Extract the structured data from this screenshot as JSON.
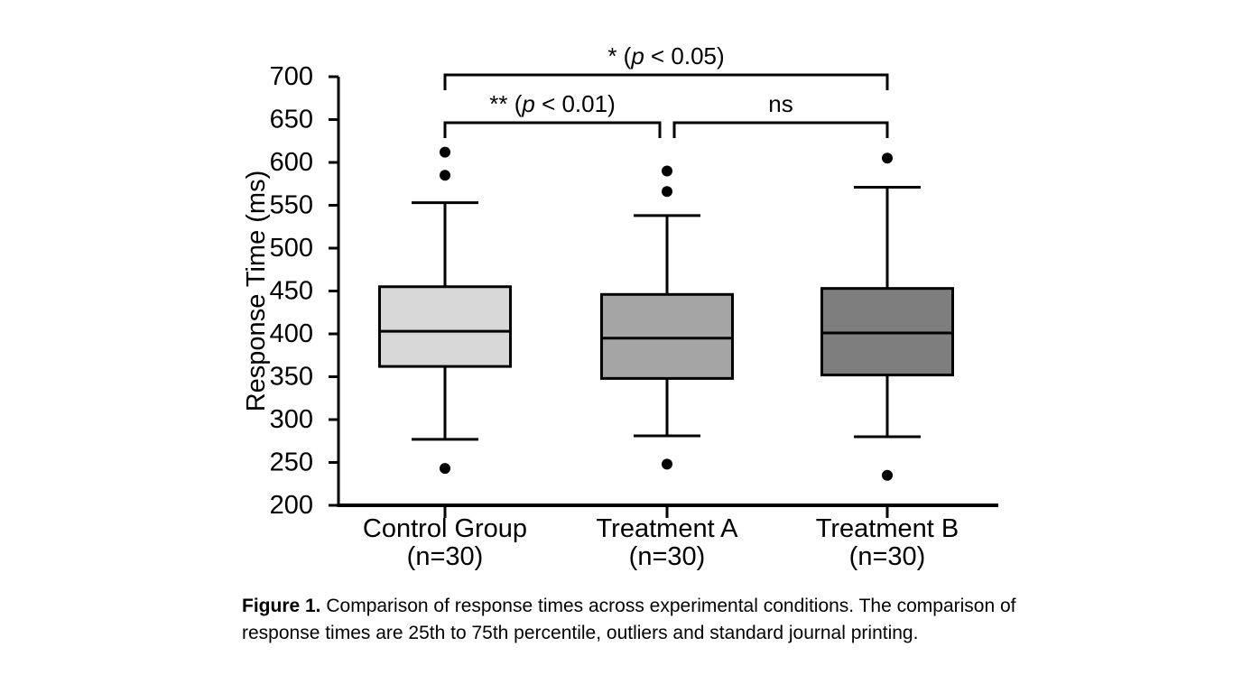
{
  "figure": {
    "background": "#ffffff",
    "caption": {
      "bold": "Figure 1.",
      "text": " Comparison of response times across experimental conditions. The comparison of response times are 25th to 75th percentile, outliers and standard journal printing."
    }
  },
  "chart_data": {
    "type": "box",
    "title": "",
    "xlabel": "",
    "ylabel": "Response Time (ms)",
    "ylim": [
      200,
      700
    ],
    "y_ticks": [
      200,
      250,
      300,
      350,
      400,
      450,
      500,
      550,
      600,
      650,
      700
    ],
    "grid": false,
    "categories": [
      "Control Group",
      "Treatment A",
      "Treatment B"
    ],
    "groups": [
      {
        "label": "Control Group",
        "sublabel": "(n=30)",
        "fill": "#d8d8d8",
        "whisker_low": 277,
        "q1": 362,
        "median": 403,
        "q3": 455,
        "whisker_high": 553,
        "outliers": [
          243,
          585,
          612
        ]
      },
      {
        "label": "Treatment A",
        "sublabel": "(n=30)",
        "fill": "#a5a5a5",
        "whisker_low": 281,
        "q1": 348,
        "median": 395,
        "q3": 446,
        "whisker_high": 538,
        "outliers": [
          248,
          566,
          590
        ]
      },
      {
        "label": "Treatment B",
        "sublabel": "(n=30)",
        "fill": "#7e7e7e",
        "whisker_low": 280,
        "q1": 352,
        "median": 401,
        "q3": 453,
        "whisker_high": 571,
        "outliers": [
          235,
          605
        ]
      }
    ],
    "significance": [
      {
        "between": [
          0,
          2
        ],
        "row": "top",
        "label_pre": "* (",
        "label_italic": "p",
        "label_post": " < 0.05)"
      },
      {
        "between": [
          0,
          1
        ],
        "row": "lower",
        "label_pre": "** (",
        "label_italic": "p",
        "label_post": " < 0.01)"
      },
      {
        "between": [
          1,
          2
        ],
        "row": "lower",
        "label_pre": "ns",
        "label_italic": "",
        "label_post": ""
      }
    ],
    "colors": {
      "stroke": "#000000",
      "text": "#000000"
    }
  }
}
